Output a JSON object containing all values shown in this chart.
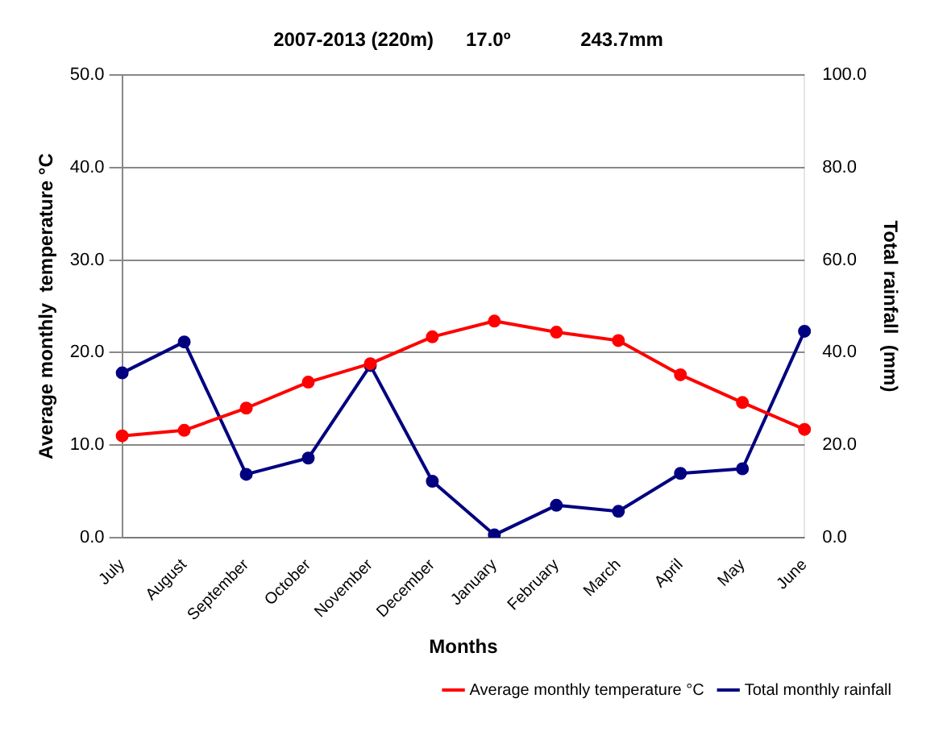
{
  "chart_data": {
    "type": "line",
    "title": "2007-2013 (220m)      17.0º             243.7mm",
    "xlabel": "Months",
    "ylabel": "Average monthly  temperature °C",
    "y2label": "Total rainfall  (mm)",
    "categories": [
      "July",
      "August",
      "September",
      "October",
      "November",
      "December",
      "January",
      "February",
      "March",
      "April",
      "May",
      "June"
    ],
    "series": [
      {
        "name": "Average monthly temperature °C",
        "color": "#ff0000",
        "values": [
          11.0,
          11.6,
          14.0,
          16.8,
          18.8,
          21.7,
          23.4,
          22.2,
          21.3,
          17.6,
          14.6,
          11.7
        ]
      },
      {
        "name": "Total monthly rainfall",
        "color": "#000080",
        "axis": "y2",
        "values": [
          35.6,
          42.3,
          13.7,
          17.2,
          37.2,
          12.2,
          0.6,
          7.0,
          5.7,
          13.9,
          14.9,
          44.6
        ]
      }
    ],
    "ylim": [
      0,
      50
    ],
    "yticks": [
      {
        "value": 0,
        "label": "0.0"
      },
      {
        "value": 10,
        "label": "10.0"
      },
      {
        "value": 20,
        "label": "20.0"
      },
      {
        "value": 30,
        "label": "30.0"
      },
      {
        "value": 40,
        "label": "40.0"
      },
      {
        "value": 50,
        "label": "50.0"
      }
    ],
    "y2lim": [
      0,
      100
    ],
    "y2ticks": [
      {
        "value": 0,
        "label": "0.0"
      },
      {
        "value": 20,
        "label": "20.0"
      },
      {
        "value": 40,
        "label": "40.0"
      },
      {
        "value": 60,
        "label": "60.0"
      },
      {
        "value": 80,
        "label": "80.0"
      },
      {
        "value": 100,
        "label": "100.0"
      }
    ],
    "grid": "y",
    "legend": "bottom right",
    "marker": "circle",
    "line_style": "solid"
  }
}
